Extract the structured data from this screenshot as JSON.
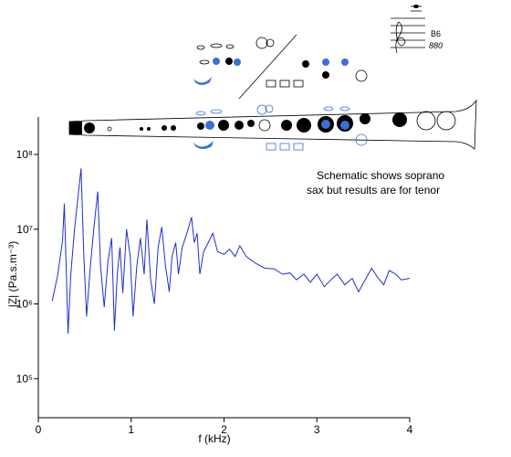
{
  "chart_data": {
    "type": "line",
    "x_label": "f (kHz)",
    "y_label": "|Z| (Pa.s.m⁻³)",
    "annotations": [
      "Schematic shows soprano",
      "sax but results are for tenor",
      "B6",
      "880"
    ],
    "yscale": "log",
    "xlim": [
      0,
      4
    ],
    "xticks": [
      0,
      1,
      2,
      3,
      4
    ],
    "ylim": [
      30000,
      300000000
    ],
    "yticks": [
      {
        "value": 100000,
        "label": "10⁵"
      },
      {
        "value": 1000000,
        "label": "10⁶"
      },
      {
        "value": 10000000,
        "label": "10⁷"
      },
      {
        "value": 100000000,
        "label": "10⁸"
      }
    ],
    "x": [
      0.15,
      0.21,
      0.26,
      0.28,
      0.3,
      0.32,
      0.35,
      0.39,
      0.46,
      0.49,
      0.52,
      0.56,
      0.6,
      0.64,
      0.67,
      0.71,
      0.75,
      0.79,
      0.82,
      0.85,
      0.88,
      0.91,
      0.95,
      0.99,
      1.02,
      1.06,
      1.1,
      1.14,
      1.17,
      1.21,
      1.25,
      1.29,
      1.33,
      1.37,
      1.41,
      1.44,
      1.48,
      1.51,
      1.55,
      1.6,
      1.65,
      1.68,
      1.71,
      1.74,
      1.78,
      1.83,
      1.88,
      1.93,
      2.0,
      2.06,
      2.12,
      2.17,
      2.24,
      2.34,
      2.44,
      2.54,
      2.63,
      2.71,
      2.78,
      2.86,
      2.93,
      3.0,
      3.08,
      3.15,
      3.22,
      3.3,
      3.38,
      3.45,
      3.52,
      3.59,
      3.65,
      3.72,
      3.78,
      3.85,
      3.91,
      4.0
    ],
    "series": [
      {
        "name": "|Z|",
        "color": "#1f2fd0",
        "values": [
          1100000,
          2500000,
          7000000,
          22000000,
          3200000,
          400000,
          2500000,
          10000000,
          65000000,
          4300000,
          680000,
          3200000,
          10700000,
          32000000,
          3200000,
          900000,
          3700000,
          7600000,
          440000,
          2500000,
          5700000,
          1400000,
          10000000,
          4300000,
          680000,
          3200000,
          7600000,
          2500000,
          13500000,
          2100000,
          1000000,
          5700000,
          10700000,
          3200000,
          1450000,
          4300000,
          6600000,
          2500000,
          5700000,
          8800000,
          14500000,
          6600000,
          8800000,
          2500000,
          5000000,
          6600000,
          8800000,
          5000000,
          4600000,
          5400000,
          4300000,
          6000000,
          4300000,
          3500000,
          3000000,
          2950000,
          2500000,
          2600000,
          2100000,
          2500000,
          1950000,
          2500000,
          1700000,
          2100000,
          2500000,
          1800000,
          2200000,
          1450000,
          2100000,
          3000000,
          2300000,
          1800000,
          2800000,
          2500000,
          2100000,
          2200000
        ]
      }
    ]
  }
}
